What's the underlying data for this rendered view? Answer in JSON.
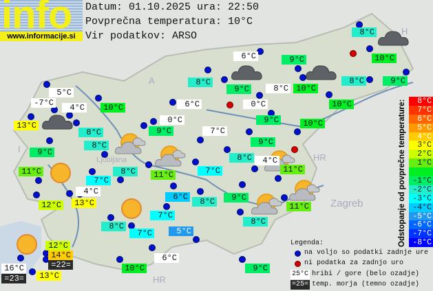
{
  "header": {
    "date_line": "Datum: 01.10.2025 ura: 22:50",
    "avg_line": "Povprečna temperatura: 10°C",
    "source_line": "Vir podatkov: ARSO"
  },
  "logo": {
    "text": "info",
    "url": "www.informacije.si"
  },
  "average_temperature": 10,
  "map_labels": {
    "austria": "A",
    "italy": "I",
    "hungary": "H",
    "croatia": "HR",
    "croatia2": "HR",
    "zagreb": "Zagreb",
    "ljubljana": "Ljubljana"
  },
  "stations": [
    {
      "t": "8°C",
      "k": "n"
    },
    {
      "t": "6°C",
      "k": "m"
    },
    {
      "t": "9°C",
      "k": "n"
    },
    {
      "t": "10°C",
      "k": "n"
    },
    {
      "t": "8°C",
      "k": "n"
    },
    {
      "t": "9°C",
      "k": "n"
    },
    {
      "t": "8°C",
      "k": "m"
    },
    {
      "t": "10°C",
      "k": "n"
    },
    {
      "t": "8°C",
      "k": "n"
    },
    {
      "t": "9°C",
      "k": "n"
    },
    {
      "t": "5°C",
      "k": "m"
    },
    {
      "t": "-7°C",
      "k": "m"
    },
    {
      "t": "4°C",
      "k": "m"
    },
    {
      "t": "10°C",
      "k": "n"
    },
    {
      "t": "6°C",
      "k": "m"
    },
    {
      "t": "0°C",
      "k": "m"
    },
    {
      "t": "10°C",
      "k": "n"
    },
    {
      "t": "13°C",
      "k": "n"
    },
    {
      "t": "0°C",
      "k": "m"
    },
    {
      "t": "9°C",
      "k": "n"
    },
    {
      "t": "10°C",
      "k": "n"
    },
    {
      "t": "8°C",
      "k": "n"
    },
    {
      "t": "7°C",
      "k": "m"
    },
    {
      "t": "9°C",
      "k": "n"
    },
    {
      "t": "8°C",
      "k": "n"
    },
    {
      "t": "9°C",
      "k": "n"
    },
    {
      "t": "9°C",
      "k": "n"
    },
    {
      "t": "8°C",
      "k": "n"
    },
    {
      "t": "4°C",
      "k": "m"
    },
    {
      "t": "7°C",
      "k": "n"
    },
    {
      "t": "8°C",
      "k": "n"
    },
    {
      "t": "11°C",
      "k": "n"
    },
    {
      "t": "11°C",
      "k": "n"
    },
    {
      "t": "11°C",
      "k": "n"
    },
    {
      "t": "7°C",
      "k": "n"
    },
    {
      "t": "4°C",
      "k": "m"
    },
    {
      "t": "12°C",
      "k": "n"
    },
    {
      "t": "13°C",
      "k": "n"
    },
    {
      "t": "6°C",
      "k": "n"
    },
    {
      "t": "8°C",
      "k": "n"
    },
    {
      "t": "9°C",
      "k": "n"
    },
    {
      "t": "11°C",
      "k": "n"
    },
    {
      "t": "8°C",
      "k": "n"
    },
    {
      "t": "7°C",
      "k": "n"
    },
    {
      "t": "7°C",
      "k": "n"
    },
    {
      "t": "8°C",
      "k": "n"
    },
    {
      "t": "5°C",
      "k": "n"
    },
    {
      "t": "6°C",
      "k": "m"
    },
    {
      "t": "12°C",
      "k": "n"
    },
    {
      "t": "14°C",
      "k": "n"
    },
    {
      "t": "=22=",
      "k": "s"
    },
    {
      "t": "16°C",
      "k": "m"
    },
    {
      "t": "=23=",
      "k": "s"
    },
    {
      "t": "13°C",
      "k": "n"
    },
    {
      "t": "10°C",
      "k": "n"
    },
    {
      "t": "9°C",
      "k": "n"
    }
  ],
  "weather_icons": [
    "cloudy",
    "cloudy",
    "cloudy",
    "cloudy",
    "partly-cloudy",
    "partly-cloudy",
    "partly-cloudy",
    "partly-cloudy",
    "partly-cloudy",
    "sunny",
    "sunny",
    "sunny"
  ],
  "scale": {
    "title": "Odstopanje od povprečne temperature:",
    "steps": [
      {
        "label": "8°C",
        "color": "#ff0000"
      },
      {
        "label": "7°C",
        "color": "#ff3300"
      },
      {
        "label": "6°C",
        "color": "#ff6600"
      },
      {
        "label": "5°C",
        "color": "#ff9900"
      },
      {
        "label": "4°C",
        "color": "#ffcc00"
      },
      {
        "label": "3°C",
        "color": "#ffff00"
      },
      {
        "label": "2°C",
        "color": "#ccff00"
      },
      {
        "label": "1°C",
        "color": "#66ee11"
      },
      {
        "label": "",
        "color": "#00ee22"
      },
      {
        "label": "-1°C",
        "color": "#00ee66"
      },
      {
        "label": "-2°C",
        "color": "#22eecc"
      },
      {
        "label": "-3°C",
        "color": "#00ffff"
      },
      {
        "label": "-4°C",
        "color": "#00ccff"
      },
      {
        "label": "-5°C",
        "color": "#2299ee"
      },
      {
        "label": "-6°C",
        "color": "#0066ff"
      },
      {
        "label": "-7°C",
        "color": "#0033ff"
      },
      {
        "label": "-8°C",
        "color": "#0000ff"
      }
    ]
  },
  "legend": {
    "title": "Legenda:",
    "available": "na voljo so podatki zadnje ure",
    "missing": "ni podatka za zadnjo uro",
    "mountain_sample": "25°C",
    "mountain_text": "hribi / gore (belo ozadje)",
    "sea_sample": "=25=",
    "sea_text": "temp. morja (temno ozadje)",
    "colors": {
      "available": "#0010d0",
      "missing": "#d80000",
      "mountain_bg": "#ffffff",
      "sea_bg": "#2a2a2a"
    }
  }
}
